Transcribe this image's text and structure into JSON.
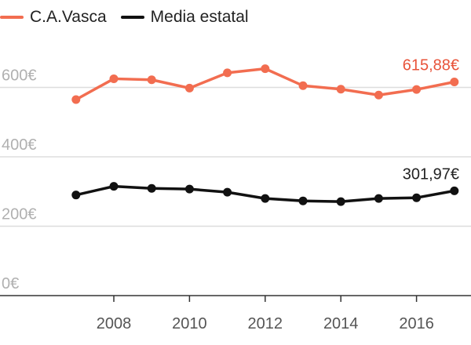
{
  "chart_data": {
    "type": "line",
    "x": [
      2007,
      2008,
      2009,
      2010,
      2011,
      2012,
      2013,
      2014,
      2015,
      2016,
      2017
    ],
    "x_tick_labels": [
      "2008",
      "2010",
      "2012",
      "2014",
      "2016"
    ],
    "y_tick_labels": [
      "0€",
      "200€",
      "400€",
      "600€"
    ],
    "ylim": [
      0,
      700
    ],
    "grid": true,
    "legend_position": "top-left",
    "series": [
      {
        "name": "C.A.Vasca",
        "color": "#f26d50",
        "values": [
          565,
          625,
          622,
          598,
          642,
          654,
          605,
          595,
          578,
          594,
          615.88
        ],
        "end_label": "615,88€"
      },
      {
        "name": "Media estatal",
        "color": "#111111",
        "values": [
          290,
          315,
          309,
          307,
          298,
          280,
          273,
          271,
          280,
          282,
          301.97
        ],
        "end_label": "301,97€"
      }
    ]
  }
}
